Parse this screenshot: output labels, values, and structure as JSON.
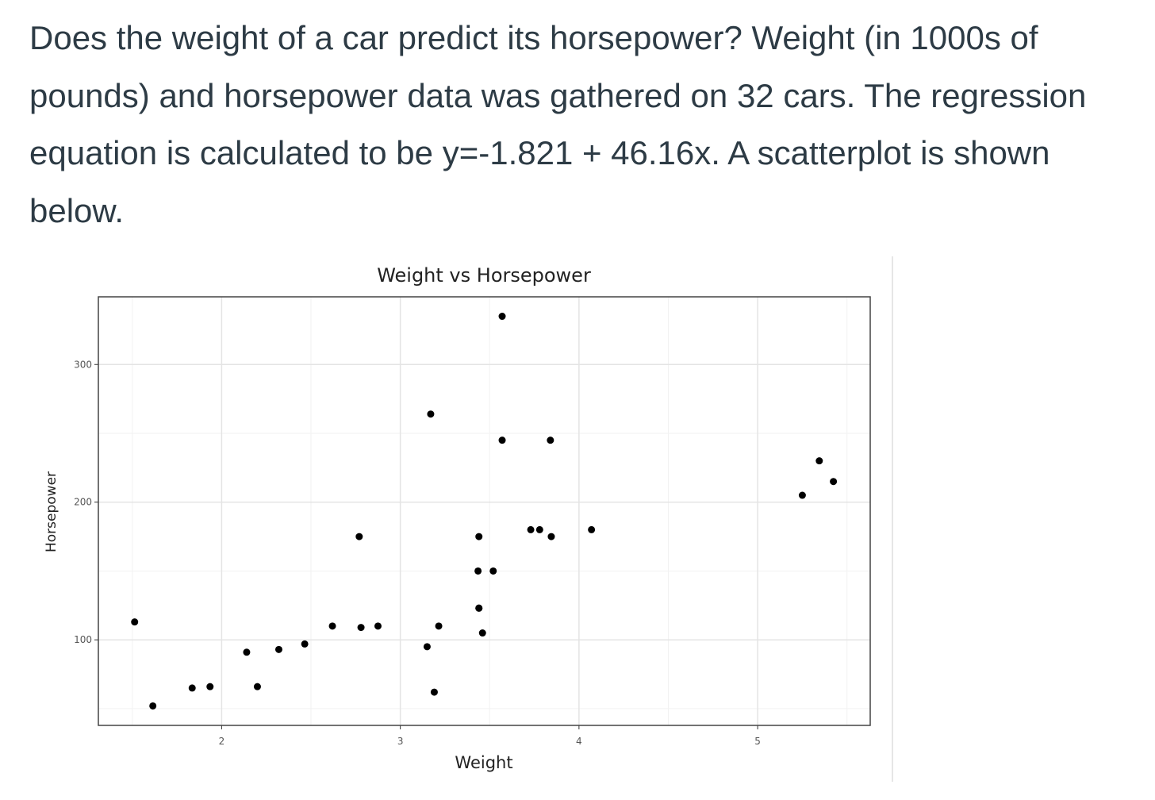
{
  "question": "Does the weight of a car predict its horsepower? Weight (in 1000s of pounds) and horsepower data was gathered on 32 cars. The regression equation is calculated to be y=-1.821 + 46.16x. A scatterplot is shown below.",
  "chart_data": {
    "type": "scatter",
    "title": "Weight vs Horsepower",
    "x_label": "Weight",
    "y_label": "Horsepower",
    "x": [
      2.62,
      2.875,
      2.32,
      3.215,
      3.44,
      3.46,
      3.57,
      3.19,
      3.15,
      3.44,
      3.44,
      4.07,
      3.73,
      3.78,
      5.25,
      5.424,
      5.345,
      2.2,
      1.615,
      1.835,
      2.465,
      3.52,
      3.435,
      3.84,
      3.845,
      1.935,
      2.14,
      1.513,
      3.17,
      2.77,
      3.57,
      2.78
    ],
    "values": [
      110,
      110,
      93,
      110,
      175,
      105,
      245,
      62,
      95,
      123,
      123,
      180,
      180,
      180,
      205,
      215,
      230,
      66,
      52,
      65,
      97,
      150,
      150,
      245,
      175,
      66,
      91,
      113,
      264,
      175,
      335,
      109
    ],
    "color": "#000000",
    "xlim": [
      1.31,
      5.63
    ],
    "ylim": [
      37.85,
      349.15
    ],
    "xticks": [
      2,
      3,
      4,
      5
    ],
    "yticks": [
      100,
      200,
      300
    ],
    "xminor": [
      1.5,
      2.5,
      3.5,
      4.5,
      5.5
    ],
    "yminor": [
      50,
      150,
      250
    ],
    "grid": true
  }
}
